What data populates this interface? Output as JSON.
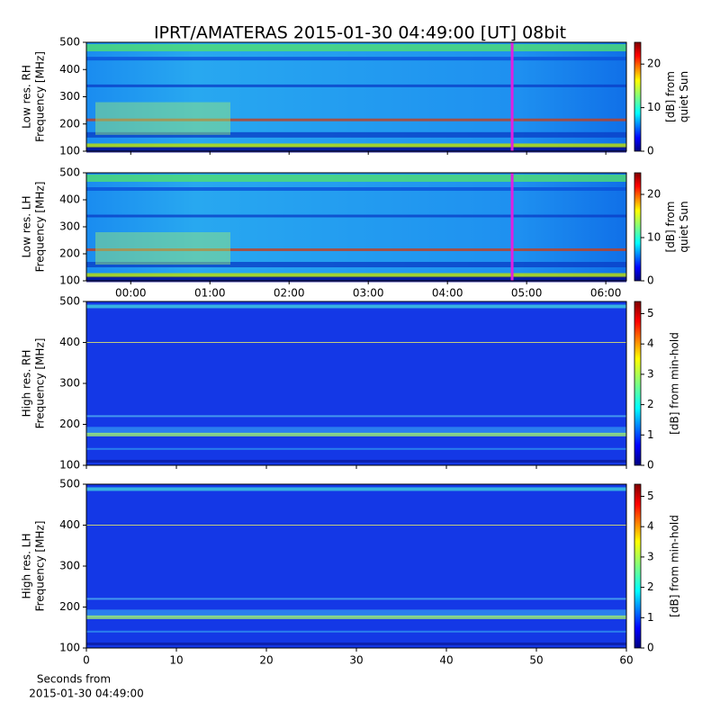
{
  "chart_data": [
    {
      "type": "heatmap",
      "title": "IPRT/AMATERAS 2015-01-30 04:49:00 [UT]   08bit",
      "ylabel": [
        "Low res. RH",
        "Frequency [MHz]"
      ],
      "ylim": [
        100,
        500
      ],
      "yticks": [
        100,
        200,
        300,
        400,
        500
      ],
      "xlim": [
        -0.56,
        6.26
      ],
      "sharex": 1,
      "marker_x": 4.817,
      "marker_color": "#e020e0",
      "colorbar": {
        "label": [
          "[dB] from",
          "quiet Sun"
        ],
        "lim": [
          0,
          25
        ],
        "ticks": [
          0,
          10,
          20
        ]
      }
    },
    {
      "type": "heatmap",
      "ylabel": [
        "Low res. LH",
        "Frequency [MHz]"
      ],
      "ylim": [
        100,
        500
      ],
      "yticks": [
        100,
        200,
        300,
        400,
        500
      ],
      "xlim": [
        -0.56,
        6.26
      ],
      "xticks": [
        {
          "value": 0,
          "label": "00:00"
        },
        {
          "value": 1,
          "label": "01:00"
        },
        {
          "value": 2,
          "label": "02:00"
        },
        {
          "value": 3,
          "label": "03:00"
        },
        {
          "value": 4,
          "label": "04:00"
        },
        {
          "value": 5,
          "label": "05:00"
        },
        {
          "value": 6,
          "label": "06:00"
        }
      ],
      "marker_x": 4.817,
      "marker_color": "#e020e0",
      "colorbar": {
        "label": [
          "[dB] from",
          "quiet Sun"
        ],
        "lim": [
          0,
          25
        ],
        "ticks": [
          0,
          10,
          20
        ]
      }
    },
    {
      "type": "heatmap",
      "ylabel": [
        "High res. RH",
        "Frequency [MHz]"
      ],
      "ylim": [
        100,
        500
      ],
      "yticks": [
        100,
        200,
        300,
        400,
        500
      ],
      "xlim": [
        0,
        60
      ],
      "sharex": 3,
      "colorbar": {
        "label": [
          "[dB] from min-hold"
        ],
        "lim": [
          0,
          5.4
        ],
        "ticks": [
          0,
          1,
          2,
          3,
          4,
          5
        ]
      }
    },
    {
      "type": "heatmap",
      "ylabel": [
        "High res. LH",
        "Frequency [MHz]"
      ],
      "ylim": [
        100,
        500
      ],
      "yticks": [
        100,
        200,
        300,
        400,
        500
      ],
      "xlim": [
        0,
        60
      ],
      "xticks": [
        0,
        10,
        20,
        30,
        40,
        50,
        60
      ],
      "xlabel": [
        "Seconds from",
        "2015-01-30 04:49:00"
      ],
      "colorbar": {
        "label": [
          "[dB] from min-hold"
        ],
        "lim": [
          0,
          5.4
        ],
        "ticks": [
          0,
          1,
          2,
          3,
          4,
          5
        ]
      }
    }
  ]
}
